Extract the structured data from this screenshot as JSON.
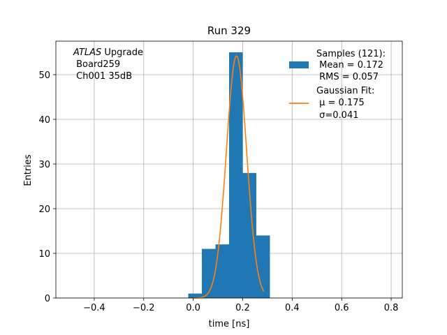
{
  "chart_data": {
    "type": "bar",
    "title": "Run 329",
    "xlabel": "time [ns]",
    "ylabel": "Entries",
    "xlim": [
      -0.555,
      0.845
    ],
    "ylim": [
      0,
      57.5
    ],
    "xticks": [
      -0.4,
      -0.2,
      0.0,
      0.2,
      0.4,
      0.6,
      0.8
    ],
    "yticks": [
      0,
      10,
      20,
      30,
      40,
      50
    ],
    "grid": true,
    "histogram": {
      "name": "Samples (121):",
      "color": "#1f77b4",
      "bins": [
        {
          "x0": -0.02,
          "x1": 0.035,
          "count": 1
        },
        {
          "x0": 0.035,
          "x1": 0.09,
          "count": 11
        },
        {
          "x0": 0.09,
          "x1": 0.145,
          "count": 12
        },
        {
          "x0": 0.145,
          "x1": 0.2,
          "count": 55
        },
        {
          "x0": 0.2,
          "x1": 0.255,
          "count": 28
        },
        {
          "x0": 0.255,
          "x1": 0.31,
          "count": 14
        }
      ]
    },
    "fit": {
      "name": "Gaussian Fit:",
      "color": "#ff7f0e",
      "mu": 0.175,
      "sigma": 0.041,
      "amplitude": 54.2,
      "xrange": [
        0.0,
        0.285
      ]
    },
    "legend": {
      "placement": "top-right",
      "hist_lines": [
        "Samples (121):",
        " Mean = 0.172",
        " RMS = 0.057"
      ],
      "fit_lines": [
        "Gaussian Fit:",
        " μ = 0.175",
        " σ=0.041"
      ]
    },
    "annotation": {
      "italic": "ATLAS",
      "rest": " Upgrade",
      "lines": [
        " Board259",
        " Ch001 35dB"
      ]
    }
  }
}
